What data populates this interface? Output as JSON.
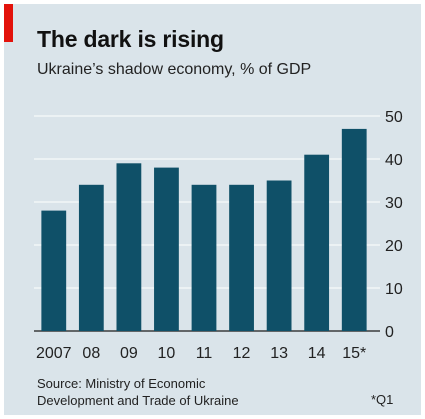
{
  "header": {
    "title": "The dark is rising",
    "subtitle": "Ukraine’s shadow economy, % of GDP"
  },
  "colors": {
    "background": "#dae4ea",
    "bar": "#0f5068",
    "accent": "#e3120b"
  },
  "chart_data": {
    "type": "bar",
    "title": "The dark is rising",
    "subtitle": "Ukraine’s shadow economy, % of GDP",
    "categories": [
      "2007",
      "08",
      "09",
      "10",
      "11",
      "12",
      "13",
      "14",
      "15*"
    ],
    "values": [
      28,
      34,
      39,
      38,
      34,
      34,
      35,
      41,
      47
    ],
    "ylim": [
      0,
      50
    ],
    "yticks": [
      0,
      10,
      20,
      30,
      40,
      50
    ],
    "y_axis_position": "right",
    "grid": true
  },
  "footer": {
    "source_line1": "Source: Ministry of Economic",
    "source_line2": "Development and Trade of Ukraine",
    "footnote": "*Q1"
  }
}
